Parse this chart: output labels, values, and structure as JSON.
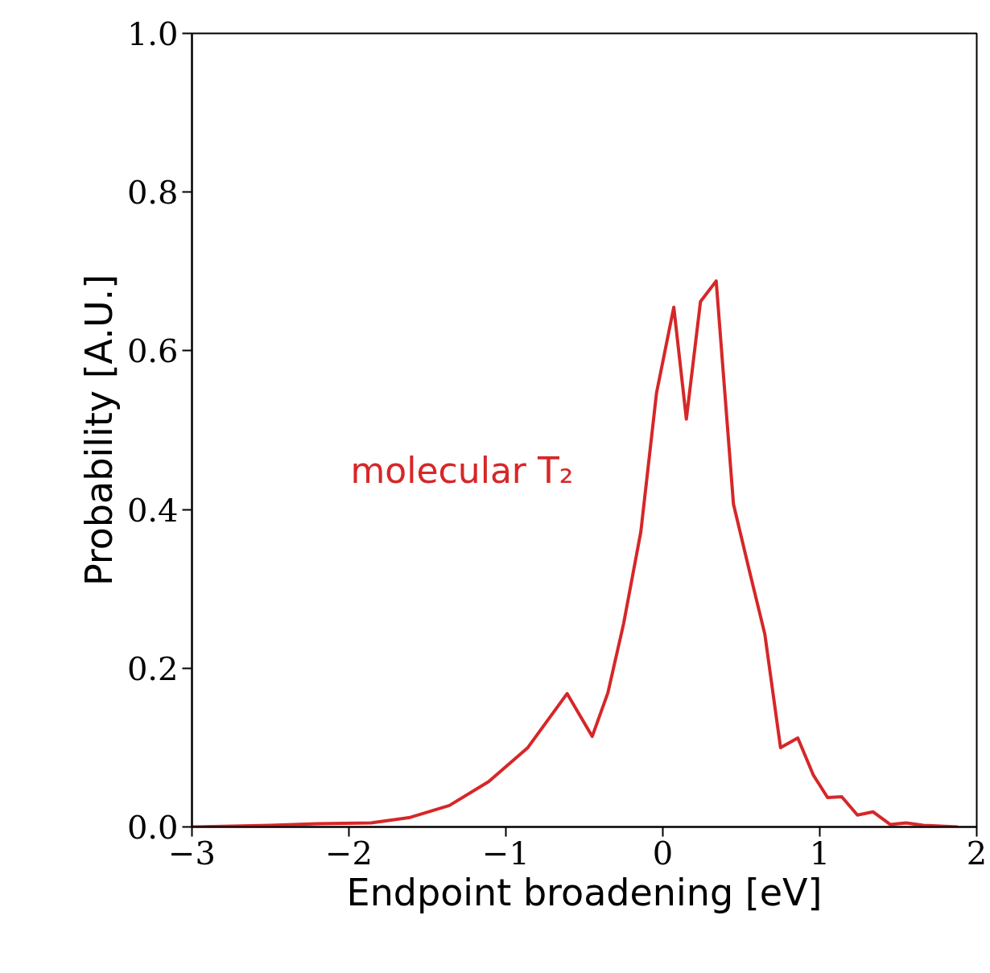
{
  "chart_data": {
    "type": "line",
    "xlabel": "Endpoint broadening [eV]",
    "ylabel": "Probability [A.U.]",
    "xlim": [
      -3,
      2
    ],
    "ylim": [
      0,
      1
    ],
    "xticks": [
      {
        "value": -3,
        "label": "−3"
      },
      {
        "value": -2,
        "label": "−2"
      },
      {
        "value": -1,
        "label": "−1"
      },
      0,
      1,
      2
    ],
    "yticks": [
      {
        "value": 0,
        "label": "0.0"
      },
      {
        "value": 0.2,
        "label": "0.2"
      },
      {
        "value": 0.4,
        "label": "0.4"
      },
      {
        "value": 0.6,
        "label": "0.6"
      },
      {
        "value": 0.8,
        "label": "0.8"
      },
      {
        "value": 1,
        "label": "1.0"
      }
    ],
    "grid": false,
    "legend": false,
    "series": [
      {
        "name": "molecular T₂",
        "color": "#d62728",
        "x": [
          -3,
          -2.5,
          -2.2,
          -1.86,
          -1.61,
          -1.36,
          -1.11,
          -0.86,
          -0.61,
          -0.45,
          -0.35,
          -0.25,
          -0.14,
          -0.04,
          0.07,
          0.15,
          0.24,
          0.34,
          0.45,
          0.55,
          0.65,
          0.75,
          0.86,
          0.96,
          1.05,
          1.14,
          1.24,
          1.34,
          1.45,
          1.55,
          1.66,
          1.88
        ],
        "values": [
          0,
          0.002,
          0.004,
          0.005,
          0.012,
          0.027,
          0.057,
          0.1,
          0.168,
          0.114,
          0.169,
          0.256,
          0.372,
          0.547,
          0.655,
          0.514,
          0.662,
          0.688,
          0.407,
          0.324,
          0.243,
          0.1,
          0.112,
          0.065,
          0.037,
          0.038,
          0.015,
          0.019,
          0.003,
          0.005,
          0.002,
          0
        ]
      }
    ]
  }
}
